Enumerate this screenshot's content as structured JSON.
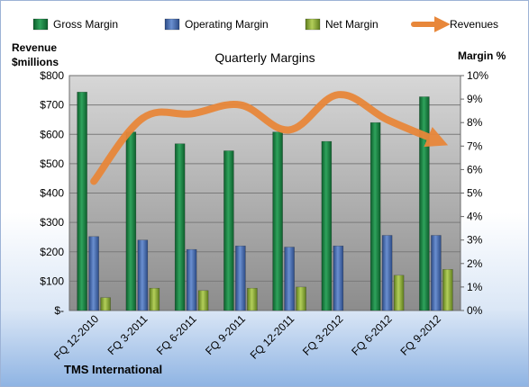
{
  "chart_data": {
    "type": "bar",
    "title": "Quarterly Margins",
    "y_left_label": [
      "Revenue",
      "$millions"
    ],
    "y_right_label": "Margin %",
    "categories": [
      "FQ 12-2010",
      "FQ 3-2011",
      "FQ 6-2011",
      "FQ 9-2011",
      "FQ 12-2011",
      "FQ 3-2012",
      "FQ 6-2012",
      "FQ 9-2012"
    ],
    "series": [
      {
        "name": "Gross Margin",
        "axis": "right",
        "color": "#1e8a4a",
        "values": [
          9.3,
          7.6,
          7.1,
          6.8,
          7.6,
          7.2,
          8.0,
          9.1
        ]
      },
      {
        "name": "Operating Margin",
        "axis": "right",
        "color": "#4a6fb5",
        "values": [
          3.15,
          3.0,
          2.6,
          2.75,
          2.7,
          2.75,
          3.2,
          3.2
        ]
      },
      {
        "name": "Net Margin",
        "axis": "right",
        "color": "#8fae3c",
        "values": [
          0.55,
          0.95,
          0.85,
          0.95,
          1.0,
          0.0,
          1.5,
          1.75
        ]
      },
      {
        "name": "Revenues",
        "axis": "left",
        "type": "line",
        "color": "#e8873a",
        "values": [
          440,
          655,
          670,
          700,
          615,
          735,
          650,
          580
        ]
      }
    ],
    "y_left": {
      "min": 0,
      "max": 800,
      "step": 100,
      "ticks": [
        "$-",
        "$100",
        "$200",
        "$300",
        "$400",
        "$500",
        "$600",
        "$700",
        "$800"
      ]
    },
    "y_right": {
      "min": 0,
      "max": 10,
      "step": 1,
      "ticks": [
        "0%",
        "1%",
        "2%",
        "3%",
        "4%",
        "5%",
        "6%",
        "7%",
        "8%",
        "9%",
        "10%"
      ]
    },
    "grid": true,
    "legend": "top"
  },
  "footer": "TMS International"
}
